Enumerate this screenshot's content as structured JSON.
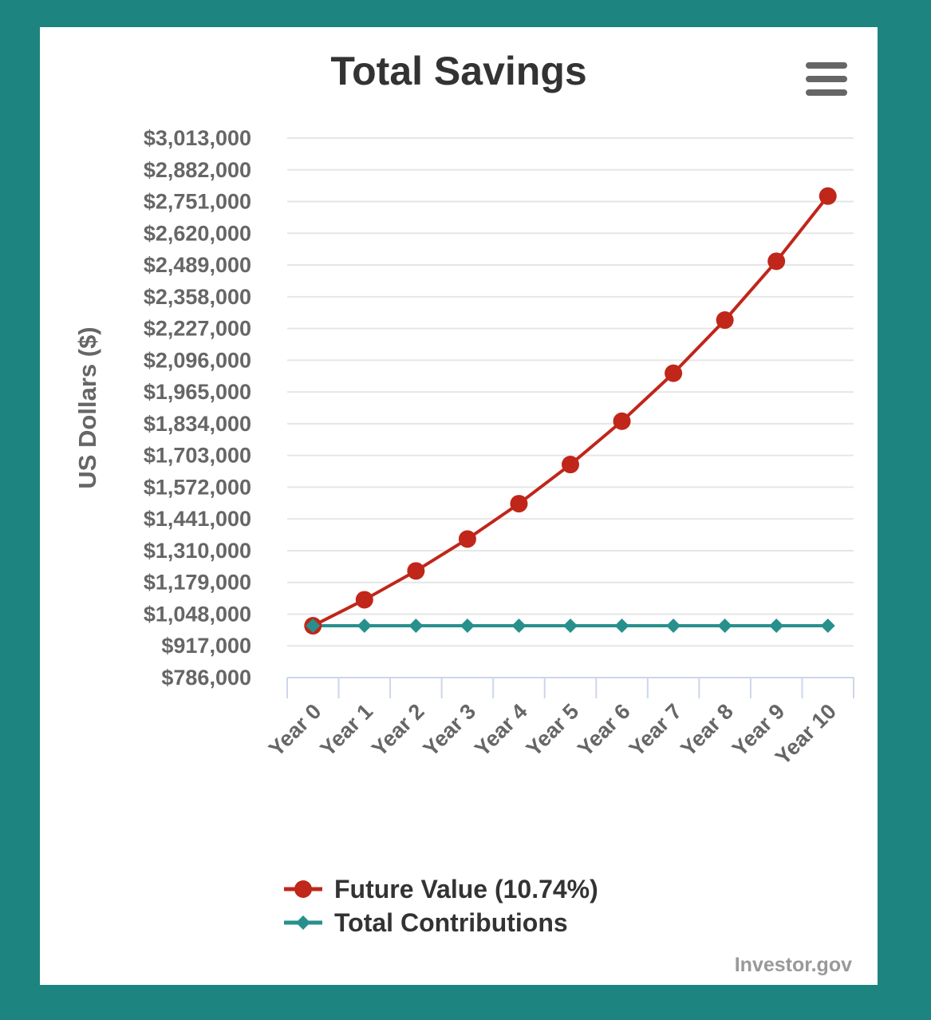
{
  "page": {
    "title": "Total Savings",
    "credit": "Investor.gov",
    "menu_icon": "hamburger-menu-icon"
  },
  "colors": {
    "background": "#1e8480",
    "future_value": "#c0261a",
    "contributions": "#27908c",
    "grid": "#e6e6e6",
    "axis_text": "#666666",
    "title": "#333333"
  },
  "chart_data": {
    "type": "line",
    "title": "Total Savings",
    "xlabel": "",
    "ylabel": "US Dollars ($)",
    "categories": [
      "Year 0",
      "Year 1",
      "Year 2",
      "Year 3",
      "Year 4",
      "Year 5",
      "Year 6",
      "Year 7",
      "Year 8",
      "Year 9",
      "Year 10"
    ],
    "yticks": [
      786000,
      917000,
      1048000,
      1179000,
      1310000,
      1441000,
      1572000,
      1703000,
      1834000,
      1965000,
      2096000,
      2227000,
      2358000,
      2489000,
      2620000,
      2751000,
      2882000,
      3013000
    ],
    "ytick_labels": [
      "$786,000",
      "$917,000",
      "$1,048,000",
      "$1,179,000",
      "$1,310,000",
      "$1,441,000",
      "$1,572,000",
      "$1,703,000",
      "$1,834,000",
      "$1,965,000",
      "$2,096,000",
      "$2,227,000",
      "$2,358,000",
      "$2,489,000",
      "$2,620,000",
      "$2,751,000",
      "$2,882,000",
      "$3,013,000"
    ],
    "ylim": [
      786000,
      3013000
    ],
    "grid": true,
    "legend_position": "bottom",
    "series": [
      {
        "name": "Future Value (10.74%)",
        "marker": "circle",
        "color": "#c0261a",
        "values": [
          1000000,
          1107400,
          1226335,
          1358043,
          1503897,
          1665415,
          1844281,
          2042357,
          2261706,
          2504613,
          2773609
        ]
      },
      {
        "name": "Total Contributions",
        "marker": "diamond",
        "color": "#27908c",
        "values": [
          1000000,
          1000000,
          1000000,
          1000000,
          1000000,
          1000000,
          1000000,
          1000000,
          1000000,
          1000000,
          1000000
        ]
      }
    ]
  }
}
